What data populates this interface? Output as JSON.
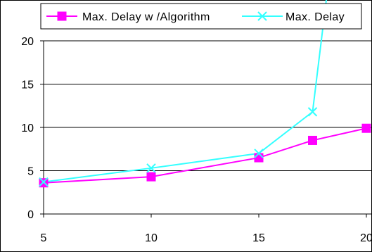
{
  "chart_data": {
    "type": "line",
    "title": "",
    "xlabel": "",
    "ylabel": "",
    "xlim": [
      5,
      20
    ],
    "ylim": [
      0,
      20
    ],
    "x_ticks": [
      "5",
      "10",
      "15",
      "20"
    ],
    "y_ticks": [
      "0",
      "5",
      "10",
      "15",
      "20"
    ],
    "grid": "horizontal",
    "legend_position": "top",
    "series": [
      {
        "name": "Max. Delay w /Algorithm",
        "color": "#FF00FF",
        "marker": "square",
        "x": [
          5,
          10,
          15,
          17.5,
          20
        ],
        "y": [
          3.6,
          4.3,
          6.5,
          8.5,
          9.9
        ]
      },
      {
        "name": "Max. Delay",
        "color": "#33FFFF",
        "marker": "x",
        "x": [
          5,
          10,
          15,
          17.5,
          18.2
        ],
        "y": [
          3.7,
          5.3,
          7.0,
          11.8,
          26.0
        ]
      }
    ]
  }
}
